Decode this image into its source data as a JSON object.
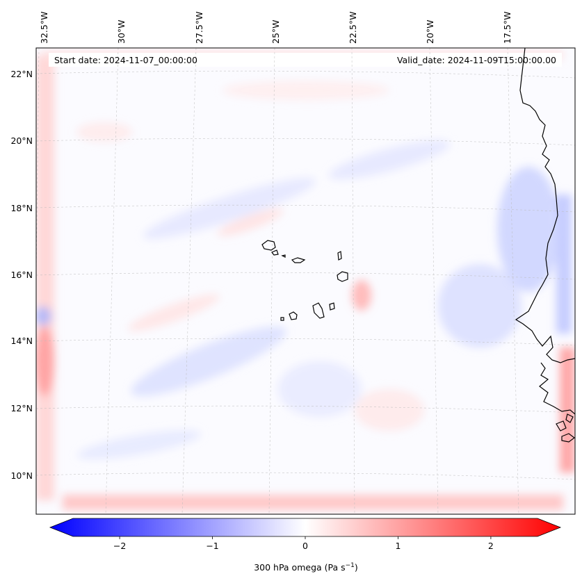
{
  "map": {
    "start_date": "Start date: 2024-11-07_00:00:00",
    "valid_date": "Valid_date: 2024-11-09T15:00:00.00",
    "lon_labels": [
      "32.5°W",
      "30°W",
      "27.5°W",
      "25°W",
      "22.5°W",
      "20°W",
      "17.5°W"
    ],
    "lat_labels": [
      "22°N",
      "20°N",
      "18°N",
      "16°N",
      "14°N",
      "12°N",
      "10°N"
    ],
    "colors": {
      "negative": "#0000ff",
      "positive": "#ff0000",
      "neutral": "#ffffff",
      "gridline": "#bbbbbb",
      "coast": "#000000"
    }
  },
  "colorbar": {
    "label": "300 hPa omega (Pa s",
    "label_sup": "−1",
    "label_end": ")",
    "min": -2.75,
    "max": 2.75,
    "ticks": [
      {
        "value": -2,
        "label": "−2"
      },
      {
        "value": -1,
        "label": "−1"
      },
      {
        "value": 0,
        "label": "0"
      },
      {
        "value": 1,
        "label": "1"
      },
      {
        "value": 2,
        "label": "2"
      }
    ]
  }
}
